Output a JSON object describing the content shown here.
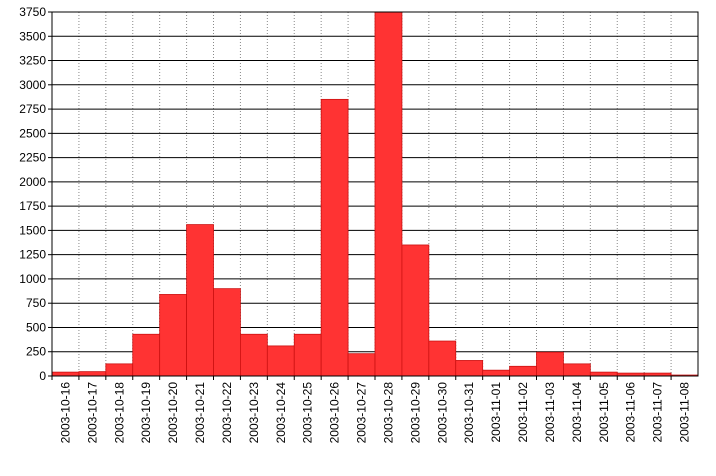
{
  "chart_data": {
    "type": "bar",
    "categories": [
      "2003-10-16",
      "2003-10-17",
      "2003-10-18",
      "2003-10-19",
      "2003-10-20",
      "2003-10-21",
      "2003-10-22",
      "2003-10-23",
      "2003-10-24",
      "2003-10-25",
      "2003-10-26",
      "2003-10-27",
      "2003-10-28",
      "2003-10-29",
      "2003-10-30",
      "2003-10-31",
      "2003-11-01",
      "2003-11-02",
      "2003-11-03",
      "2003-11-04",
      "2003-11-05",
      "2003-11-06",
      "2003-11-07",
      "2003-11-08"
    ],
    "values": [
      40,
      45,
      125,
      430,
      840,
      1560,
      900,
      430,
      310,
      430,
      2850,
      230,
      3750,
      1350,
      360,
      160,
      60,
      100,
      245,
      125,
      40,
      30,
      30,
      10
    ],
    "color": "#ff3333",
    "ylim": [
      0,
      3750
    ],
    "yticks": [
      0,
      250,
      500,
      750,
      1000,
      1250,
      1500,
      1750,
      2000,
      2250,
      2500,
      2750,
      3000,
      3250,
      3500,
      3750
    ],
    "grid": true
  }
}
